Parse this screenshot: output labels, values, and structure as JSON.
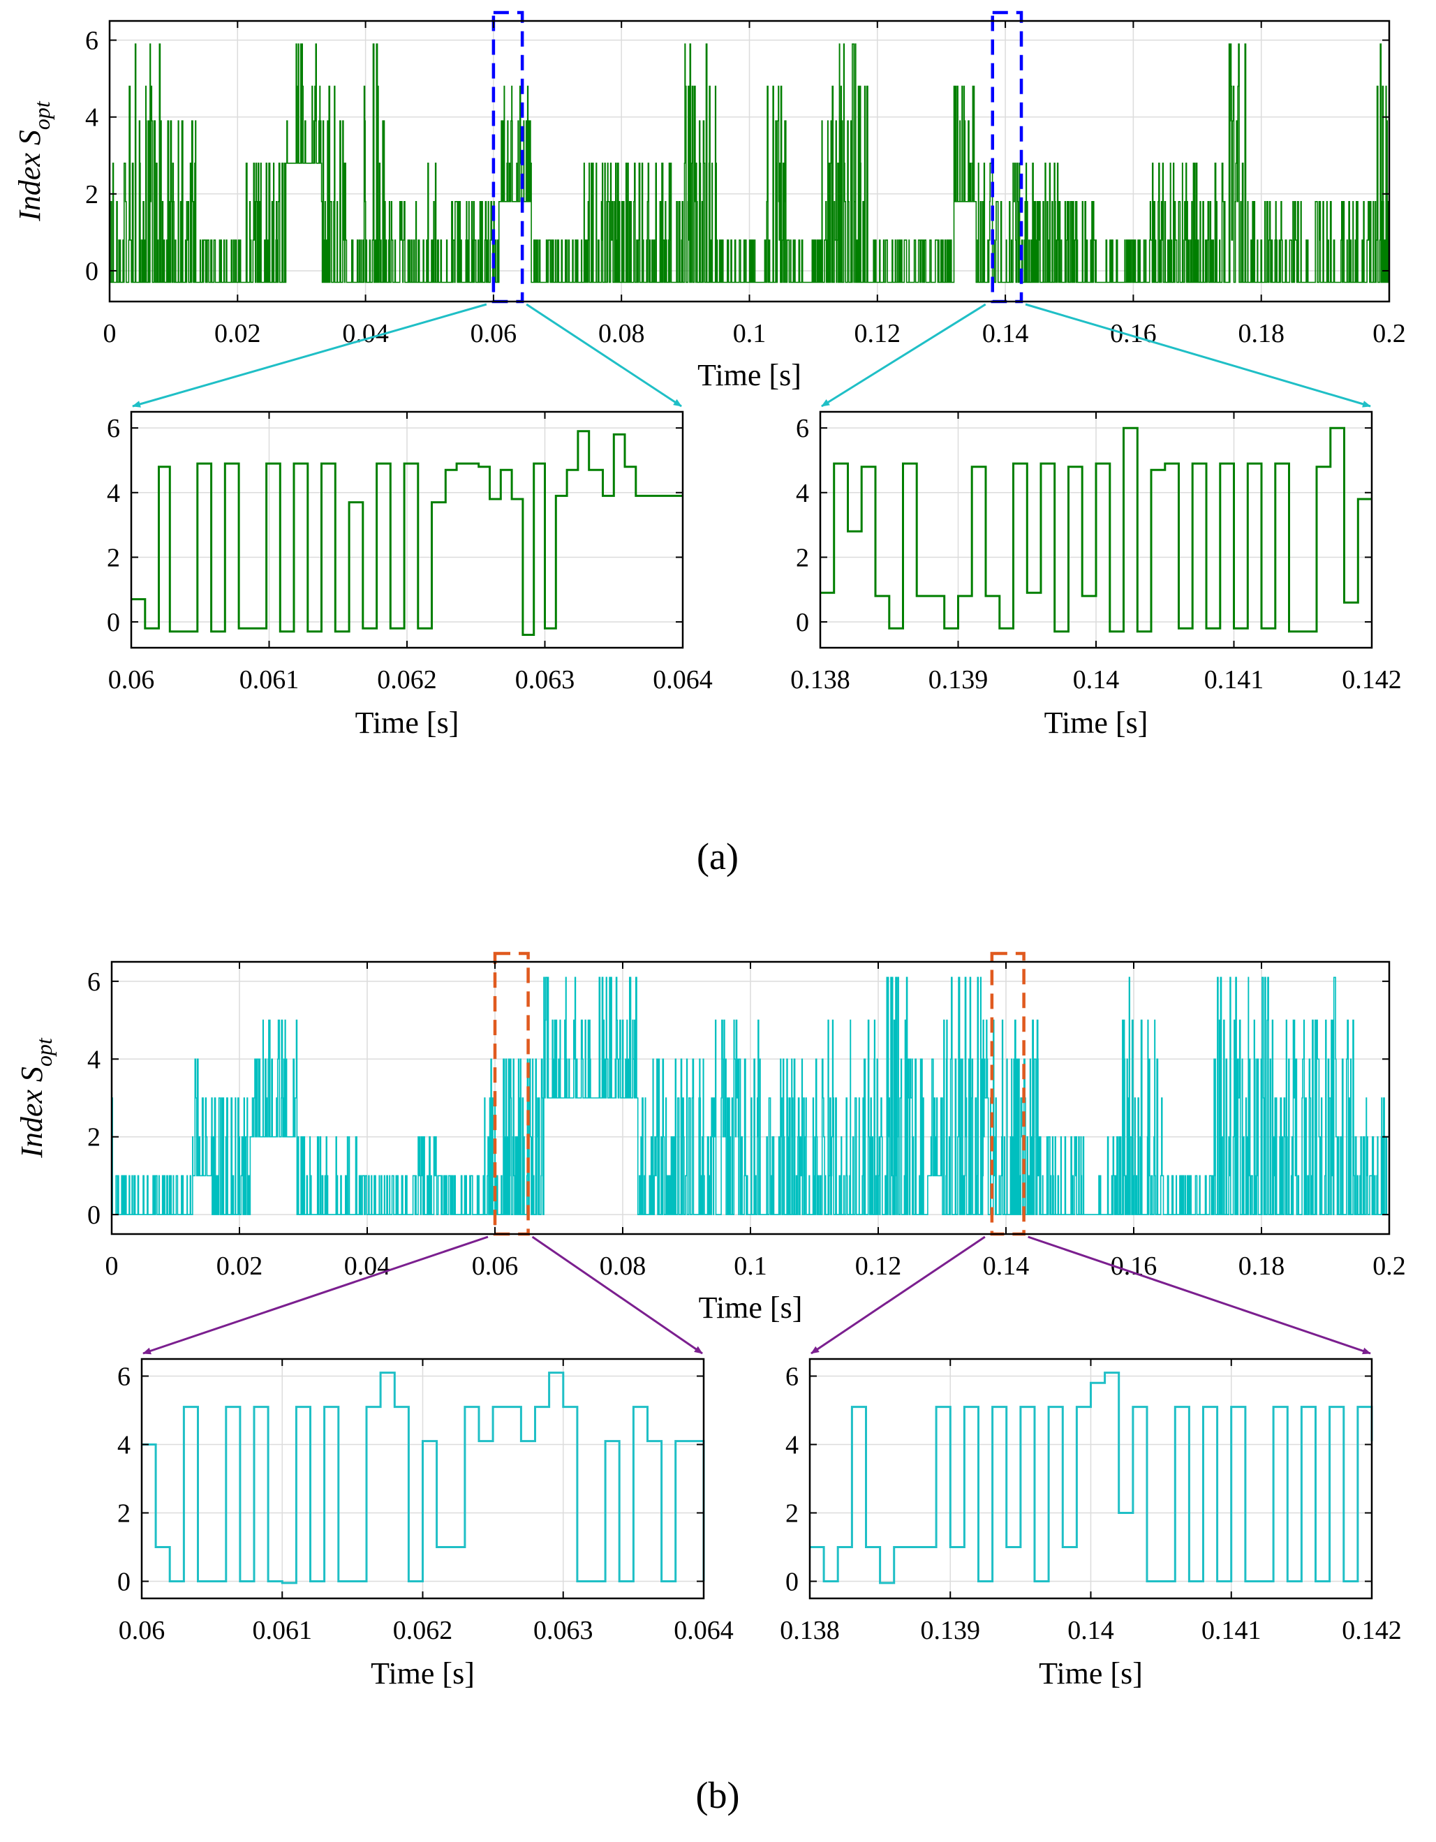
{
  "chart_data": [
    {
      "id": "a_main",
      "type": "line",
      "panel": "a",
      "trace": "dense step signal (pseudo-reconstructed)",
      "color": "#007f00",
      "xlim": [
        0,
        0.2
      ],
      "ylim": [
        -0.8,
        6.5
      ],
      "xticks": [
        "0",
        "0.02",
        "0.04",
        "0.06",
        "0.08",
        "0.1",
        "0.12",
        "0.14",
        "0.16",
        "0.18",
        "0.2"
      ],
      "yticks": [
        "0",
        "2",
        "4",
        "6"
      ],
      "xlabel": "Time [s]",
      "ylabel": "Index S",
      "ylabel_sub": "opt",
      "levels": [
        -0.3,
        0.8,
        1.8,
        2.8,
        3.9,
        4.8,
        5.9
      ],
      "zoom_windows": [
        [
          0.06,
          0.0645
        ],
        [
          0.138,
          0.1425
        ]
      ],
      "zoom_color": "#0000ff",
      "arrow_color": "#1fbfc6"
    },
    {
      "id": "a_zoom1",
      "type": "line",
      "panel": "a",
      "color": "#007f00",
      "xlim": [
        0.06,
        0.064
      ],
      "ylim": [
        -0.8,
        6.5
      ],
      "xticks": [
        "0.06",
        "0.061",
        "0.062",
        "0.063",
        "0.064"
      ],
      "yticks": [
        "0",
        "2",
        "4",
        "6"
      ],
      "xlabel": "Time [s]",
      "x": [
        0.06,
        0.0601,
        0.0602,
        0.06028,
        0.06038,
        0.06048,
        0.06058,
        0.06068,
        0.06078,
        0.06088,
        0.06098,
        0.06108,
        0.06118,
        0.06128,
        0.06138,
        0.06148,
        0.06158,
        0.06168,
        0.06178,
        0.06188,
        0.06198,
        0.06208,
        0.06218,
        0.06228,
        0.06236,
        0.06244,
        0.06252,
        0.0626,
        0.06268,
        0.06276,
        0.06284,
        0.06292,
        0.063,
        0.06308,
        0.06316,
        0.06324,
        0.06332,
        0.06342,
        0.0635,
        0.06358,
        0.06366,
        0.06374,
        0.06382,
        0.0639,
        0.064
      ],
      "y": [
        0.7,
        -0.2,
        4.8,
        -0.3,
        -0.3,
        4.9,
        -0.3,
        4.9,
        -0.2,
        -0.2,
        4.9,
        -0.3,
        4.9,
        -0.3,
        4.9,
        -0.3,
        3.7,
        -0.2,
        4.9,
        -0.2,
        4.9,
        -0.2,
        3.7,
        4.7,
        4.9,
        4.9,
        4.8,
        3.8,
        4.7,
        3.8,
        -0.4,
        4.9,
        -0.2,
        3.9,
        4.7,
        5.9,
        4.7,
        3.9,
        5.8,
        4.8,
        3.9,
        3.9,
        3.9,
        3.9,
        3.9
      ]
    },
    {
      "id": "a_zoom2",
      "type": "line",
      "panel": "a",
      "color": "#007f00",
      "xlim": [
        0.138,
        0.142
      ],
      "ylim": [
        -0.8,
        6.5
      ],
      "xticks": [
        "0.138",
        "0.139",
        "0.14",
        "0.141",
        "0.142"
      ],
      "yticks": [
        "0",
        "2",
        "4",
        "6"
      ],
      "xlabel": "Time [s]",
      "x": [
        0.138,
        0.1381,
        0.1382,
        0.1383,
        0.1384,
        0.1385,
        0.1386,
        0.1387,
        0.1388,
        0.1389,
        0.139,
        0.1391,
        0.1392,
        0.1393,
        0.1394,
        0.1395,
        0.1396,
        0.1397,
        0.1398,
        0.1399,
        0.14,
        0.1401,
        0.1402,
        0.1403,
        0.1404,
        0.1405,
        0.1406,
        0.1407,
        0.1408,
        0.1409,
        0.141,
        0.1411,
        0.1412,
        0.1413,
        0.1414,
        0.1415,
        0.1416,
        0.1417,
        0.1418,
        0.1419,
        0.142
      ],
      "y": [
        0.9,
        4.9,
        2.8,
        4.8,
        0.8,
        -0.2,
        4.9,
        0.8,
        0.8,
        -0.2,
        0.8,
        4.8,
        0.8,
        -0.2,
        4.9,
        0.9,
        4.9,
        -0.3,
        4.8,
        0.8,
        4.9,
        -0.3,
        6.0,
        -0.3,
        4.7,
        4.9,
        -0.2,
        4.9,
        -0.2,
        4.9,
        -0.2,
        4.9,
        -0.2,
        4.9,
        -0.3,
        -0.3,
        4.8,
        6.0,
        0.6,
        3.8,
        3.8
      ]
    },
    {
      "id": "b_main",
      "type": "line",
      "panel": "b",
      "trace": "dense step signal (pseudo-reconstructed)",
      "color": "#00bfbf",
      "xlim": [
        0,
        0.2
      ],
      "ylim": [
        -0.5,
        6.5
      ],
      "xticks": [
        "0",
        "0.02",
        "0.04",
        "0.06",
        "0.08",
        "0.1",
        "0.12",
        "0.14",
        "0.16",
        "0.18",
        "0.2"
      ],
      "yticks": [
        "0",
        "2",
        "4",
        "6"
      ],
      "xlabel": "Time [s]",
      "ylabel": "Index S",
      "ylabel_sub": "opt",
      "levels": [
        0,
        1,
        2,
        3,
        4,
        5,
        6.1
      ],
      "zoom_windows": [
        [
          0.06,
          0.0652
        ],
        [
          0.1378,
          0.1428
        ]
      ],
      "zoom_color": "#e05a1f",
      "arrow_color": "#7b1f8f"
    },
    {
      "id": "b_zoom1",
      "type": "line",
      "panel": "b",
      "color": "#1fbfc6",
      "xlim": [
        0.06,
        0.064
      ],
      "ylim": [
        -0.5,
        6.5
      ],
      "xticks": [
        "0.06",
        "0.061",
        "0.062",
        "0.063",
        "0.064"
      ],
      "yticks": [
        "0",
        "2",
        "4",
        "6"
      ],
      "xlabel": "Time [s]",
      "x": [
        0.06,
        0.0601,
        0.0602,
        0.0603,
        0.0604,
        0.0605,
        0.0606,
        0.0607,
        0.0608,
        0.0609,
        0.061,
        0.0611,
        0.0612,
        0.0613,
        0.0614,
        0.0615,
        0.0616,
        0.0617,
        0.0618,
        0.0619,
        0.062,
        0.0621,
        0.0622,
        0.0623,
        0.0624,
        0.0625,
        0.0626,
        0.0627,
        0.0628,
        0.0629,
        0.063,
        0.0631,
        0.0632,
        0.0633,
        0.0634,
        0.0635,
        0.0636,
        0.0637,
        0.0638,
        0.0639,
        0.064
      ],
      "y": [
        4.0,
        1.0,
        0.0,
        5.1,
        0.0,
        0.0,
        5.1,
        0.0,
        5.1,
        0.0,
        -0.05,
        5.1,
        0.0,
        5.1,
        0.0,
        0.0,
        5.1,
        6.1,
        5.1,
        0.0,
        4.1,
        1.0,
        1.0,
        5.1,
        4.1,
        5.1,
        5.1,
        4.1,
        5.1,
        6.1,
        5.1,
        0.0,
        0.0,
        4.1,
        0.0,
        5.1,
        4.1,
        0.0,
        4.1,
        4.1,
        0.0
      ]
    },
    {
      "id": "b_zoom2",
      "type": "line",
      "panel": "b",
      "color": "#1fbfc6",
      "xlim": [
        0.138,
        0.142
      ],
      "ylim": [
        -0.5,
        6.5
      ],
      "xticks": [
        "0.138",
        "0.139",
        "0.14",
        "0.141",
        "0.142"
      ],
      "yticks": [
        "0",
        "2",
        "4",
        "6"
      ],
      "xlabel": "Time [s]",
      "x": [
        0.138,
        0.1381,
        0.1382,
        0.1383,
        0.1384,
        0.1385,
        0.1386,
        0.1387,
        0.1388,
        0.1389,
        0.139,
        0.1391,
        0.1392,
        0.1393,
        0.1394,
        0.1395,
        0.1396,
        0.1397,
        0.1398,
        0.1399,
        0.14,
        0.1401,
        0.1402,
        0.1403,
        0.1404,
        0.1405,
        0.1406,
        0.1407,
        0.1408,
        0.1409,
        0.141,
        0.1411,
        0.1412,
        0.1413,
        0.1414,
        0.1415,
        0.1416,
        0.1417,
        0.1418,
        0.1419,
        0.142
      ],
      "y": [
        1.0,
        0.0,
        1.0,
        5.1,
        1.0,
        -0.05,
        1.0,
        1.0,
        1.0,
        5.1,
        1.0,
        5.1,
        0.0,
        5.1,
        1.0,
        5.1,
        0.0,
        5.1,
        1.0,
        5.1,
        5.8,
        6.1,
        2.0,
        5.1,
        0.0,
        0.0,
        5.1,
        0.0,
        5.1,
        0.0,
        5.1,
        0.0,
        0.0,
        5.1,
        0.0,
        5.1,
        0.0,
        5.1,
        0.0,
        5.1,
        4.1
      ]
    }
  ],
  "captions": {
    "a": "(a)",
    "b": "(b)"
  }
}
